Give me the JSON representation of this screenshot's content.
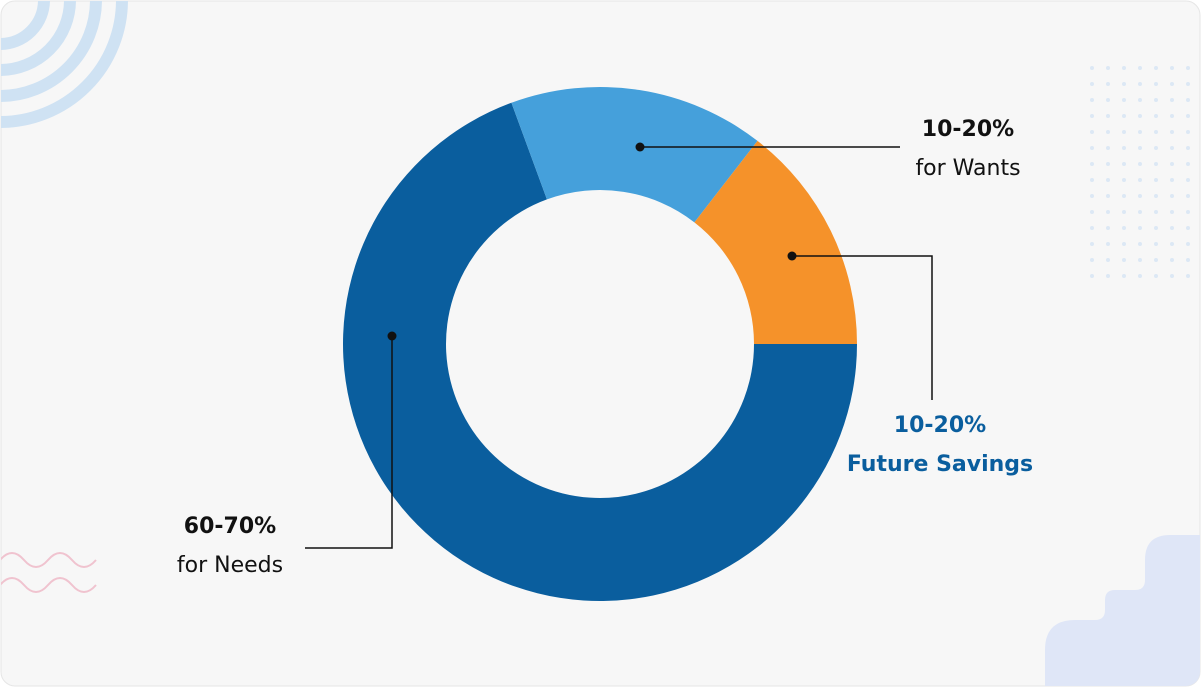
{
  "chart_data": {
    "type": "pie",
    "donut": true,
    "categories": [
      "for Needs",
      "for Wants",
      "Future Savings"
    ],
    "values": [
      69.4,
      16.1,
      14.5
    ],
    "value_labels": [
      "60-70%",
      "10-20%",
      "10-20%"
    ],
    "colors": [
      "#0a5e9e",
      "#45a0db",
      "#f5922a"
    ],
    "label_colors": [
      "#111111",
      "#111111",
      "#0a5e9e"
    ]
  }
}
